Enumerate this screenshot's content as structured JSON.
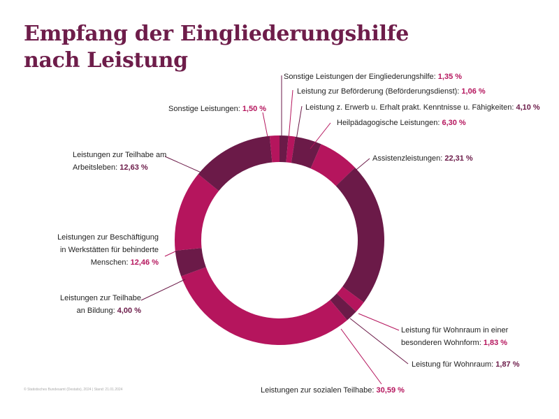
{
  "title": [
    "Empfang der Eingliederungshilfe",
    "nach Leistung"
  ],
  "footer": "© Statistisches Bundesamt (Destatis), 2024 | Stand: 21.01.2024",
  "colors": {
    "dark": "#6b1a48",
    "magenta": "#b5155d",
    "title": "#6e1d4a",
    "value_text": "#b5155d"
  },
  "chart_data": {
    "type": "pie",
    "title": "Empfang der Eingliederungshilfe nach Leistung",
    "start_angle_deg": 0,
    "slices": [
      {
        "label": "Sonstige Leistungen der Eingliederungshilfe:",
        "value": 1.35,
        "value_text": "1,35 %",
        "color": "dark"
      },
      {
        "label": "Leistung zur Beförderung (Beförderungsdienst):",
        "value": 1.06,
        "value_text": "1,06 %",
        "color": "magenta"
      },
      {
        "label": "Leistung z. Erwerb u. Erhalt prakt. Kenntnisse u. Fähigkeiten:",
        "value": 4.1,
        "value_text": "4,10 %",
        "color": "dark"
      },
      {
        "label": "Heilpädagogische Leistungen:",
        "value": 6.3,
        "value_text": "6,30 %",
        "color": "magenta"
      },
      {
        "label": "Assistenzleistungen:",
        "value": 22.31,
        "value_text": "22,31 %",
        "color": "dark"
      },
      {
        "label": "Leistung für Wohnraum in einer besonderen Wohnform:",
        "value": 1.83,
        "value_text": "1,83 %",
        "color": "magenta"
      },
      {
        "label": "Leistung für Wohnraum:",
        "value": 1.87,
        "value_text": "1,87 %",
        "color": "dark"
      },
      {
        "label": "Leistungen zur sozialen Teilhabe:",
        "value": 30.59,
        "value_text": "30,59 %",
        "color": "magenta"
      },
      {
        "label": "Leistungen zur Teilhabe an Bildung:",
        "value": 4.0,
        "value_text": "4,00 %",
        "color": "dark"
      },
      {
        "label": "Leistungen zur Beschäftigung in Werkstätten für behinderte Menschen:",
        "value": 12.46,
        "value_text": "12,46 %",
        "color": "magenta"
      },
      {
        "label": "Leistungen zur Teilhabe am Arbeitsleben:",
        "value": 12.63,
        "value_text": "12,63 %",
        "color": "dark"
      },
      {
        "label": "Sonstige Leistungen:",
        "value": 1.5,
        "value_text": "1,50 %",
        "color": "magenta"
      }
    ]
  },
  "labels": {
    "sonstige_ein": {
      "text": "Sonstige Leistungen der Eingliederungshilfe:",
      "value": "1,35 %"
    },
    "befoerderung": {
      "text": "Leistung zur Beförderung (Beförderungsdienst):",
      "value": "1,06 %"
    },
    "erwerb": {
      "text": "Leistung z. Erwerb u. Erhalt prakt. Kenntnisse u. Fähigkeiten:",
      "value": "4,10 %"
    },
    "heilpaed": {
      "text": "Heilpädagogische Leistungen:",
      "value": "6,30 %"
    },
    "assistenz": {
      "text": "Assistenzleistungen:",
      "value": "22,31 %"
    },
    "wohnform": {
      "line1": "Leistung für Wohnraum in einer",
      "line2": "besonderen Wohnform:",
      "value": "1,83 %"
    },
    "wohnraum": {
      "text": "Leistung für Wohnraum:",
      "value": "1,87 %"
    },
    "sozial": {
      "text": "Leistungen zur sozialen Teilhabe:",
      "value": "30,59 %"
    },
    "bildung": {
      "line1": "Leistungen zur Teilhabe",
      "line2": "an Bildung:",
      "value": "4,00 %"
    },
    "werkstatt": {
      "line1": "Leistungen zur Beschäftigung",
      "line2": "in Werkstätten für behinderte",
      "line3": "Menschen:",
      "value": "12,46 %"
    },
    "arbeitsleben": {
      "line1": "Leistungen zur Teilhabe am",
      "line2": "Arbeitsleben:",
      "value": "12,63 %"
    },
    "sonstige": {
      "text": "Sonstige Leistungen:",
      "value": "1,50 %"
    }
  }
}
